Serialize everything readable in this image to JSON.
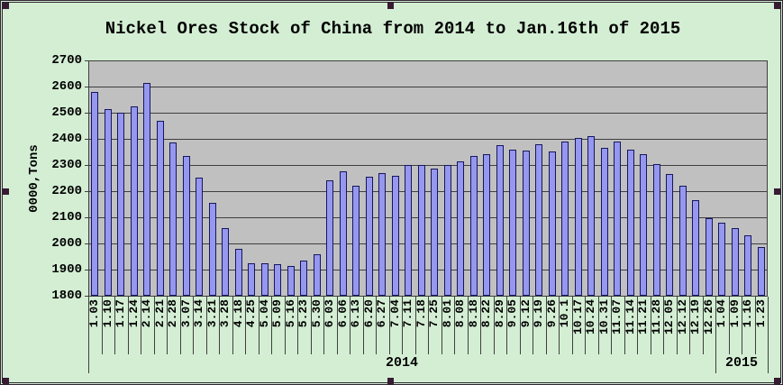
{
  "window": {
    "kind": "spreadsheet-embedded-chart",
    "selected": true
  },
  "colors": {
    "background": "#d4eed4",
    "plot_background": "#c0c0c0",
    "bar_fill": "#9697ef",
    "bar_border": "#16165d",
    "gridline": "#3f3f3f",
    "text": "#000000",
    "selection_handle": "#371b33",
    "object_border": "#2e2430"
  },
  "chart_data": {
    "type": "bar",
    "title": "Nickel Ores Stock of China from 2014 to Jan.16th of 2015",
    "xlabel": "",
    "ylabel": "0000,Tons",
    "ylim": [
      1800,
      2700
    ],
    "ytick_step": 100,
    "grid": true,
    "legend_position": "none",
    "categories": [
      "1.03",
      "1.10",
      "1.17",
      "1.24",
      "2.14",
      "2.21",
      "2.28",
      "3.07",
      "3.14",
      "3.21",
      "3.28",
      "4.18",
      "4.25",
      "5.04",
      "5.09",
      "5.16",
      "5.23",
      "5.30",
      "6.03",
      "6.06",
      "6.13",
      "6.20",
      "6.27",
      "7.04",
      "7.11",
      "7.18",
      "7.25",
      "8.01",
      "8.08",
      "8.18",
      "8.22",
      "8.29",
      "9.05",
      "9.12",
      "9.19",
      "9.26",
      "10.1",
      "10.17",
      "10.24",
      "10.31",
      "11.07",
      "11.14",
      "11.21",
      "11.28",
      "12.05",
      "12.12",
      "12.19",
      "12.26",
      "1.04",
      "1.09",
      "1.16",
      "1.23"
    ],
    "values": [
      2580,
      2515,
      2500,
      2525,
      2615,
      2470,
      2385,
      2335,
      2250,
      2155,
      2060,
      1980,
      1925,
      1925,
      1920,
      1915,
      1935,
      1960,
      2240,
      2275,
      2220,
      2255,
      2270,
      2260,
      2300,
      2300,
      2285,
      2300,
      2315,
      2335,
      2340,
      2375,
      2360,
      2355,
      2380,
      2350,
      2390,
      2405,
      2410,
      2365,
      2390,
      2360,
      2340,
      2305,
      2265,
      2220,
      2165,
      2095,
      2080,
      2060,
      2030,
      1985
    ],
    "x_groups": [
      {
        "label": "2014",
        "count": 48
      },
      {
        "label": "2015",
        "count": 4
      }
    ]
  }
}
